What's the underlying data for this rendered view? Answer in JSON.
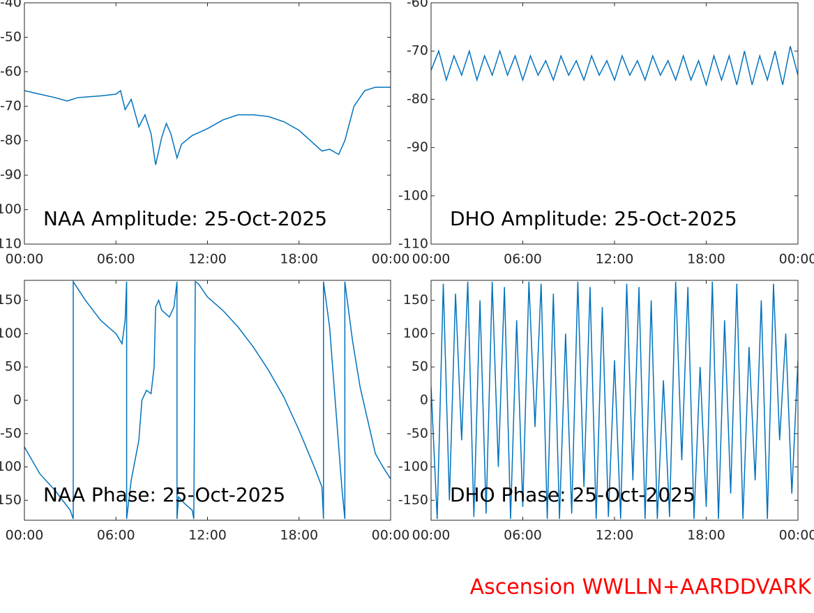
{
  "chart_data": [
    {
      "type": "line",
      "title": "NAA Amplitude: 25-Oct-2025",
      "color": "#0072bd",
      "x": [
        0,
        1,
        2,
        2.8,
        3.5,
        5,
        6,
        6.3,
        6.6,
        7,
        7.5,
        7.9,
        8.3,
        8.6,
        9,
        9.3,
        9.6,
        10,
        10.3,
        11,
        12,
        13,
        14,
        15,
        16,
        17,
        18,
        19,
        19.5,
        20,
        20.6,
        21,
        21.6,
        22.3,
        23,
        24
      ],
      "values": [
        -65.5,
        -66.5,
        -67.5,
        -68.5,
        -67.5,
        -67,
        -66.5,
        -65.5,
        -71,
        -68,
        -76,
        -72.5,
        -78,
        -87,
        -79,
        -75,
        -78,
        -85,
        -81,
        -78.5,
        -76.5,
        -74,
        -72.5,
        -72.5,
        -73,
        -74.5,
        -77,
        -81,
        -83,
        -82.5,
        -84,
        -80,
        -70,
        -65.5,
        -64.5,
        -64.5
      ],
      "xlim": [
        0,
        24
      ],
      "xticks": [
        {
          "value": 0,
          "label": "00:00"
        },
        {
          "value": 6,
          "label": "06:00"
        },
        {
          "value": 12,
          "label": "12:00"
        },
        {
          "value": 18,
          "label": "18:00"
        },
        {
          "value": 24,
          "label": "00:00"
        }
      ],
      "ylim": [
        -110,
        -40
      ],
      "yticks": [
        -110,
        -100,
        -90,
        -80,
        -70,
        -60,
        -50,
        -40
      ]
    },
    {
      "type": "line",
      "title": "DHO Amplitude: 25-Oct-2025",
      "color": "#0072bd",
      "x": [
        0,
        0.5,
        1,
        1.5,
        2,
        2.5,
        3,
        3.5,
        4,
        4.5,
        5,
        5.5,
        6,
        6.5,
        7,
        7.5,
        8,
        8.5,
        9,
        9.5,
        10,
        10.5,
        11,
        11.5,
        12,
        12.5,
        13,
        13.5,
        14,
        14.5,
        15,
        15.5,
        16,
        16.5,
        17,
        17.5,
        18,
        18.5,
        19,
        19.5,
        20,
        20.5,
        21,
        21.5,
        22,
        22.5,
        23,
        23.5,
        24
      ],
      "values": [
        -74,
        -70,
        -76,
        -71,
        -75,
        -70,
        -76,
        -71,
        -75,
        -70,
        -75,
        -71,
        -76,
        -71,
        -75,
        -72,
        -76,
        -71,
        -75,
        -72,
        -76,
        -71,
        -75,
        -72,
        -76,
        -71,
        -75,
        -72,
        -76,
        -71,
        -75,
        -72,
        -76,
        -71,
        -76,
        -72,
        -77,
        -71,
        -76,
        -71,
        -77,
        -70,
        -77,
        -71,
        -76,
        -70,
        -77,
        -69,
        -75
      ],
      "xlim": [
        0,
        24
      ],
      "xticks": [
        {
          "value": 0,
          "label": "00:00"
        },
        {
          "value": 6,
          "label": "06:00"
        },
        {
          "value": 12,
          "label": "12:00"
        },
        {
          "value": 18,
          "label": "18:00"
        },
        {
          "value": 24,
          "label": "00:00"
        }
      ],
      "ylim": [
        -110,
        -60
      ],
      "yticks": [
        -110,
        -100,
        -90,
        -80,
        -70,
        -60
      ]
    },
    {
      "type": "line",
      "title": "NAA Phase: 25-Oct-2025",
      "color": "#0072bd",
      "x": [
        0,
        1,
        2,
        3,
        3.2,
        3.2,
        4,
        5,
        6,
        6.4,
        6.6,
        6.7,
        6.7,
        7,
        7.5,
        7.7,
        8,
        8.3,
        8.5,
        8.6,
        8.8,
        9,
        9.5,
        9.8,
        10,
        10,
        10.1,
        10.5,
        11,
        11.1,
        11.2,
        11.4,
        12,
        13,
        14,
        15,
        16,
        17,
        18,
        19,
        19.5,
        19.6,
        19.6,
        20,
        20.5,
        20.8,
        21,
        21,
        21.5,
        22,
        23,
        23.5,
        24
      ],
      "values": [
        -70,
        -110,
        -135,
        -165,
        -178,
        178,
        150,
        120,
        100,
        85,
        120,
        178,
        -178,
        -120,
        -60,
        0,
        15,
        10,
        50,
        140,
        150,
        135,
        125,
        140,
        178,
        -178,
        -145,
        -155,
        -165,
        -178,
        178,
        175,
        155,
        135,
        110,
        80,
        45,
        5,
        -45,
        -100,
        -130,
        -178,
        178,
        110,
        -40,
        -130,
        -178,
        178,
        90,
        20,
        -80,
        -100,
        -118
      ],
      "xlim": [
        0,
        24
      ],
      "xticks": [
        {
          "value": 0,
          "label": "00:00"
        },
        {
          "value": 6,
          "label": "06:00"
        },
        {
          "value": 12,
          "label": "12:00"
        },
        {
          "value": 18,
          "label": "18:00"
        },
        {
          "value": 24,
          "label": "00:00"
        }
      ],
      "ylim": [
        -180,
        180
      ],
      "yticks": [
        -150,
        -100,
        -50,
        0,
        50,
        100,
        150
      ]
    },
    {
      "type": "line",
      "title": "DHO Phase: 25-Oct-2025",
      "color": "#0072bd",
      "x": [
        0,
        0.4,
        0.8,
        1.2,
        1.6,
        2,
        2.4,
        2.8,
        3.2,
        3.6,
        4,
        4.4,
        4.8,
        5.2,
        5.6,
        6,
        6.4,
        6.8,
        7.2,
        7.6,
        8,
        8.4,
        8.8,
        9.2,
        9.6,
        10,
        10.4,
        10.8,
        11.2,
        11.6,
        12,
        12.4,
        12.8,
        13.2,
        13.6,
        14,
        14.4,
        14.8,
        15.2,
        15.6,
        16,
        16.4,
        16.8,
        17.2,
        17.6,
        18,
        18.4,
        18.8,
        19.2,
        19.6,
        20,
        20.4,
        20.8,
        21.2,
        21.6,
        22,
        22.4,
        22.8,
        23.2,
        23.6,
        24
      ],
      "values": [
        20,
        -178,
        175,
        -150,
        160,
        -60,
        178,
        -175,
        150,
        -170,
        178,
        -100,
        170,
        -178,
        120,
        -160,
        178,
        -40,
        175,
        -178,
        160,
        -178,
        100,
        -170,
        178,
        -130,
        170,
        -178,
        140,
        -175,
        60,
        -178,
        175,
        -120,
        170,
        -178,
        150,
        -178,
        30,
        -175,
        178,
        -90,
        170,
        -178,
        50,
        -160,
        178,
        -178,
        120,
        -140,
        175,
        -178,
        80,
        -120,
        150,
        -178,
        175,
        -60,
        100,
        -140,
        60
      ],
      "xlim": [
        0,
        24
      ],
      "xticks": [
        {
          "value": 0,
          "label": "00:00"
        },
        {
          "value": 6,
          "label": "06:00"
        },
        {
          "value": 12,
          "label": "12:00"
        },
        {
          "value": 18,
          "label": "18:00"
        },
        {
          "value": 24,
          "label": "00:00"
        }
      ],
      "ylim": [
        -180,
        180
      ],
      "yticks": [
        -150,
        -100,
        -50,
        0,
        50,
        100,
        150
      ]
    }
  ],
  "footer": "Ascension WWLLN+AARDDVARK"
}
